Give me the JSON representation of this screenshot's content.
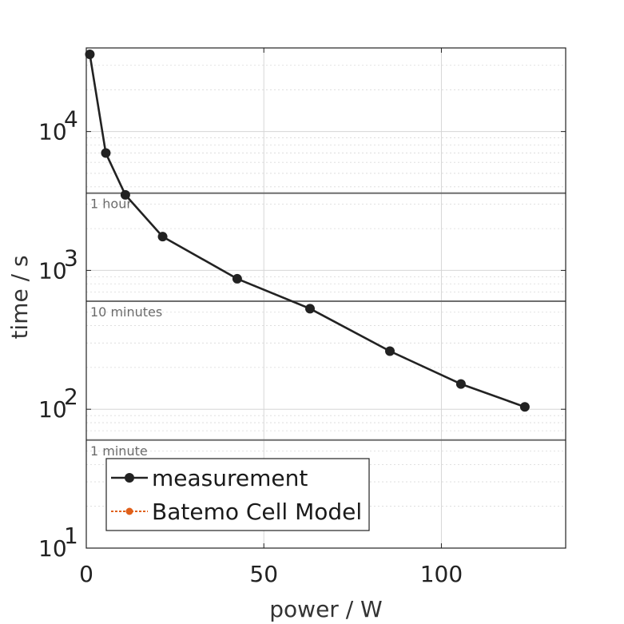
{
  "chart_data": {
    "type": "line",
    "xlabel": "power / W",
    "ylabel": "time / s",
    "xlim": [
      0,
      135
    ],
    "ylim": [
      10,
      40000
    ],
    "yscale": "log",
    "grid": true,
    "legend_placement": "bottom-left",
    "x_ticks": [
      {
        "value": 0,
        "label": "0"
      },
      {
        "value": 50,
        "label": "50"
      },
      {
        "value": 100,
        "label": "100"
      }
    ],
    "y_ticks": [
      {
        "value": 10,
        "base": "10",
        "exp": "1"
      },
      {
        "value": 100,
        "base": "10",
        "exp": "2"
      },
      {
        "value": 1000,
        "base": "10",
        "exp": "3"
      },
      {
        "value": 10000,
        "base": "10",
        "exp": "4"
      }
    ],
    "reference_lines": [
      {
        "y": 3600,
        "label": "1 hour"
      },
      {
        "y": 600,
        "label": "10 minutes"
      },
      {
        "y": 60,
        "label": "1 minute"
      }
    ],
    "series": [
      {
        "name": "measurement",
        "color": "#222222",
        "x": [
          1,
          5.5,
          11,
          21.5,
          42.5,
          63,
          85.5,
          105.5,
          123.5
        ],
        "y": [
          36000,
          7000,
          3500,
          1750,
          870,
          530,
          262,
          152,
          104
        ]
      },
      {
        "name": "Batemo Cell Model",
        "color": "#e0601a",
        "x": [],
        "y": []
      }
    ]
  }
}
